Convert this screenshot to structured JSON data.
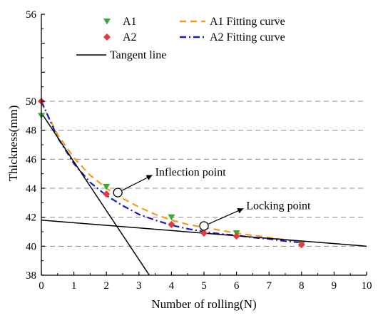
{
  "chart_data": {
    "type": "line",
    "xlabel": "Number of rolling(N)",
    "ylabel": "Thickness(mm)",
    "xlim": [
      0,
      10
    ],
    "ylim": [
      38,
      56
    ],
    "x_ticks": [
      "0",
      "1",
      "2",
      "3",
      "4",
      "5",
      "6",
      "7",
      "8",
      "9",
      "10"
    ],
    "y_ticks": [
      "38",
      "40",
      "42",
      "44",
      "46",
      "48",
      "50",
      "56"
    ],
    "grid": "horizontal dashed at 40, 42, 44, 46, 48, 50",
    "legend_position": "top",
    "series": [
      {
        "name": "A1",
        "kind": "scatter",
        "marker": "triangle-down",
        "color": "#3aaa35",
        "x": [
          0,
          2,
          4,
          5,
          6,
          8
        ],
        "y": [
          49.0,
          44.1,
          42.0,
          41.3,
          40.9,
          40.1
        ]
      },
      {
        "name": "A2",
        "kind": "scatter",
        "marker": "diamond",
        "color": "#e8363c",
        "x": [
          0,
          2,
          4,
          5,
          6,
          8
        ],
        "y": [
          50.0,
          43.6,
          41.5,
          40.9,
          40.7,
          40.1
        ]
      },
      {
        "name": "A1 Fitting curve",
        "kind": "line",
        "dash": "dash",
        "color": "#f39c1f",
        "x": [
          0,
          0.5,
          1,
          1.5,
          2,
          2.5,
          3,
          3.5,
          4,
          4.5,
          5,
          5.5,
          6,
          6.5,
          7,
          7.5,
          8
        ],
        "y": [
          49.9,
          47.7,
          46.1,
          44.9,
          44.0,
          43.3,
          42.7,
          42.2,
          41.8,
          41.5,
          41.3,
          41.1,
          40.9,
          40.75,
          40.6,
          40.45,
          40.3
        ]
      },
      {
        "name": "A2 Fitting curve",
        "kind": "line",
        "dash": "dashdot",
        "color": "#1818c8",
        "x": [
          0,
          0.5,
          1,
          1.5,
          2,
          2.5,
          3,
          3.5,
          4,
          4.5,
          5,
          5.5,
          6,
          6.5,
          7,
          7.5,
          8
        ],
        "y": [
          50.0,
          47.5,
          45.7,
          44.4,
          43.5,
          42.8,
          42.2,
          41.8,
          41.45,
          41.2,
          41.0,
          40.85,
          40.75,
          40.6,
          40.5,
          40.35,
          40.25
        ]
      },
      {
        "name": "Tangent line",
        "kind": "line",
        "dash": "solid",
        "color": "#000000",
        "segments": [
          {
            "x": [
              0,
              3.32
            ],
            "y": [
              49.2,
              38
            ]
          },
          {
            "x": [
              0,
              10
            ],
            "y": [
              41.8,
              40.0
            ]
          }
        ]
      }
    ],
    "annotations": [
      {
        "label": "Inflection point",
        "at": [
          2.35,
          43.7
        ],
        "text_at": [
          3.5,
          45.1
        ]
      },
      {
        "label": "Locking point",
        "at": [
          5.0,
          41.4
        ],
        "text_at": [
          6.3,
          42.8
        ]
      }
    ]
  }
}
